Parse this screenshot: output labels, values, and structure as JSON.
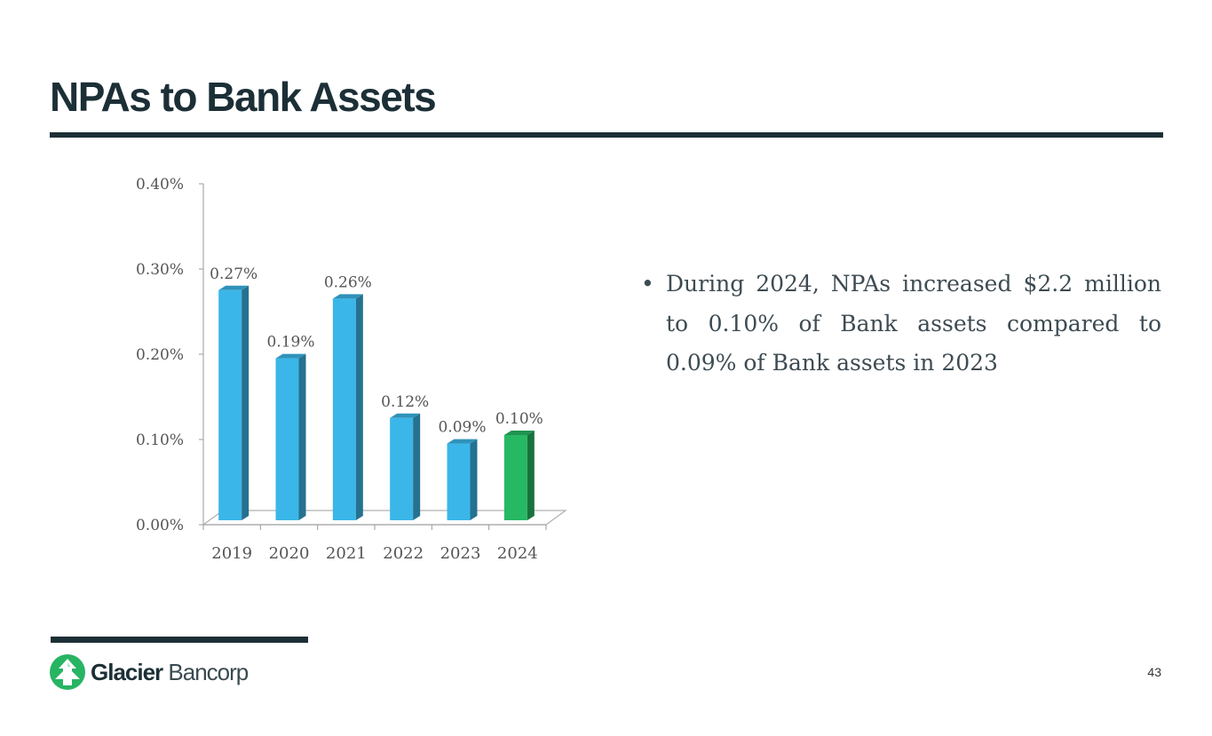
{
  "slide": {
    "title": "NPAs to Bank Assets",
    "page_number": "43"
  },
  "bullet": {
    "marker": "•",
    "text": "During 2024, NPAs increased $2.2 million to 0.10% of Bank assets compared to 0.09% of Bank assets in 2023"
  },
  "logo": {
    "name_bold": "Glacier",
    "name_light": " Bancorp",
    "icon": "glacier-tree-icon",
    "color": "#27b463"
  },
  "chart_data": {
    "type": "bar",
    "categories": [
      "2019",
      "2020",
      "2021",
      "2022",
      "2023",
      "2024"
    ],
    "values": [
      0.27,
      0.19,
      0.26,
      0.12,
      0.09,
      0.1
    ],
    "data_labels": [
      "0.27%",
      "0.19%",
      "0.26%",
      "0.12%",
      "0.09%",
      "0.10%"
    ],
    "yticks": [
      "0.00%",
      "0.10%",
      "0.20%",
      "0.30%",
      "0.40%"
    ],
    "ylim": [
      0,
      0.4
    ],
    "unit": "%",
    "grid": false,
    "colors": {
      "bar": "#3bb6e8",
      "highlight": "#27b863",
      "highlight_category": "2024"
    }
  }
}
